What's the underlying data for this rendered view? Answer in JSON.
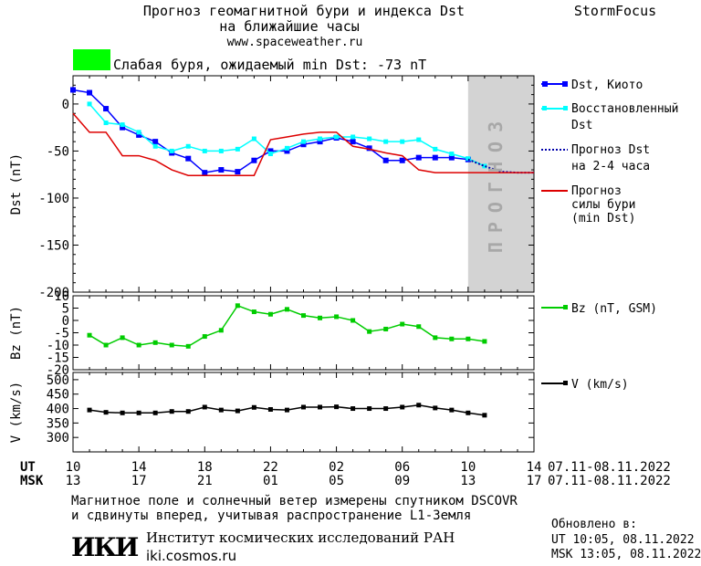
{
  "header": {
    "title_line1": "Прогноз геомагнитной бури и индекса Dst",
    "title_line2": "на ближайшие часы",
    "site_url": "www.spaceweather.ru",
    "brand": "StormFocus"
  },
  "status": {
    "text": "Слабая буря, ожидаемый min Dst: -73 nT",
    "color": "#00ff00"
  },
  "colors": {
    "dst_kyoto": "#0000ff",
    "dst_restored": "#00ffff",
    "forecast_dotted": "#0000aa",
    "storm_forecast": "#dd0000",
    "bz": "#00cc00",
    "v": "#000000",
    "forecast_zone": "#d3d3d3"
  },
  "forecast_zone_label": "ПРОГНОЗ",
  "chart_data": [
    {
      "type": "line",
      "panel": "dst",
      "ylabel": "Dst (nT)",
      "ylim": [
        -200,
        30
      ],
      "yticks": [
        0,
        -50,
        -100,
        -150,
        -200
      ],
      "xlim": [
        10,
        38
      ],
      "forecast_zone": [
        34,
        38
      ],
      "series": [
        {
          "name": "Dst, Киото",
          "style": "line+square",
          "x": [
            10,
            11,
            12,
            13,
            14,
            15,
            16,
            17,
            18,
            19,
            20,
            21,
            22,
            23,
            24,
            25,
            26,
            27,
            28,
            29,
            30,
            31,
            32,
            33,
            34
          ],
          "y": [
            15,
            12,
            -5,
            -25,
            -33,
            -40,
            -52,
            -58,
            -73,
            -70,
            -72,
            -60,
            -50,
            -50,
            -43,
            -40,
            -36,
            -40,
            -47,
            -60,
            -60,
            -57,
            -57,
            -57,
            -59
          ]
        },
        {
          "name": "Восстановленный Dst",
          "style": "line+square",
          "x": [
            11,
            12,
            13,
            14,
            15,
            16,
            17,
            18,
            19,
            20,
            21,
            22,
            23,
            24,
            25,
            26,
            27,
            28,
            29,
            30,
            31,
            32,
            33,
            34,
            35
          ],
          "y": [
            0,
            -20,
            -22,
            -30,
            -45,
            -50,
            -45,
            -50,
            -50,
            -48,
            -37,
            -53,
            -47,
            -40,
            -37,
            -35,
            -35,
            -37,
            -40,
            -40,
            -38,
            -48,
            -53,
            -58,
            -66
          ]
        },
        {
          "name": "Прогноз Dst на 2-4 часа",
          "style": "dotted",
          "x": [
            34,
            35,
            36,
            37,
            38
          ],
          "y": [
            -59,
            -66,
            -72,
            -73,
            -73
          ]
        },
        {
          "name": "Прогноз силы бури (min Dst)",
          "style": "line",
          "x": [
            10,
            11,
            12,
            13,
            14,
            15,
            16,
            17,
            18,
            19,
            20,
            21,
            22,
            23,
            24,
            25,
            26,
            27,
            28,
            29,
            30,
            31,
            32,
            33,
            34,
            35,
            36,
            37,
            38
          ],
          "y": [
            -10,
            -30,
            -30,
            -55,
            -55,
            -60,
            -70,
            -76,
            -76,
            -76,
            -76,
            -76,
            -38,
            -35,
            -32,
            -30,
            -30,
            -45,
            -48,
            -52,
            -55,
            -70,
            -73,
            -73,
            -73,
            -73,
            -73,
            -73,
            -73
          ]
        }
      ]
    },
    {
      "type": "line",
      "panel": "bz",
      "ylabel": "Bz (nT)",
      "ylim": [
        -20,
        10
      ],
      "yticks": [
        10,
        5,
        0,
        -5,
        -10,
        -15,
        -20
      ],
      "xlim": [
        10,
        38
      ],
      "series": [
        {
          "name": "Bz (nT, GSM)",
          "x": [
            11,
            12,
            13,
            14,
            15,
            16,
            17,
            18,
            19,
            20,
            21,
            22,
            23,
            24,
            25,
            26,
            27,
            28,
            29,
            30,
            31,
            32,
            33,
            34,
            35
          ],
          "y": [
            -6,
            -10,
            -7,
            -10,
            -9,
            -10,
            -10.5,
            -6.5,
            -4,
            6,
            3.5,
            2.5,
            4.5,
            2,
            1,
            1.5,
            0,
            -4.5,
            -3.5,
            -1.5,
            -2.5,
            -7,
            -7.5,
            -7.5,
            -8.5
          ]
        }
      ]
    },
    {
      "type": "line",
      "panel": "v",
      "ylabel": "V (km/s)",
      "ylim": [
        250,
        525
      ],
      "yticks": [
        500,
        450,
        400,
        350,
        300
      ],
      "xlim": [
        10,
        38
      ],
      "series": [
        {
          "name": "V (km/s)",
          "x": [
            11,
            12,
            13,
            14,
            15,
            16,
            17,
            18,
            19,
            20,
            21,
            22,
            23,
            24,
            25,
            26,
            27,
            28,
            29,
            30,
            31,
            32,
            33,
            34,
            35
          ],
          "y": [
            395,
            387,
            385,
            385,
            385,
            390,
            390,
            405,
            395,
            392,
            404,
            397,
            395,
            405,
            405,
            406,
            400,
            400,
            400,
            405,
            412,
            402,
            395,
            385,
            377
          ]
        }
      ]
    }
  ],
  "x_axis": {
    "ut_label": "UT",
    "msk_label": "MSK",
    "ut_ticks": [
      "10",
      "14",
      "18",
      "22",
      "02",
      "06",
      "10",
      "14"
    ],
    "msk_ticks": [
      "13",
      "17",
      "21",
      "01",
      "05",
      "09",
      "13",
      "17"
    ],
    "date_range": "07.11-08.11.2022"
  },
  "footer": {
    "line1": "Магнитное поле и солнечный ветер измерены спутником DSCOVR",
    "line2": "и сдвинуты вперед, учитывая распространение L1-Земля",
    "institute_logo": "ИКИ",
    "institute_name": "Институт космических исследований РАН",
    "institute_url": "iki.cosmos.ru",
    "updated_label": "Обновлено в:",
    "updated_ut": "UT   10:05, 08.11.2022",
    "updated_msk": "MSK 13:05, 08.11.2022"
  }
}
